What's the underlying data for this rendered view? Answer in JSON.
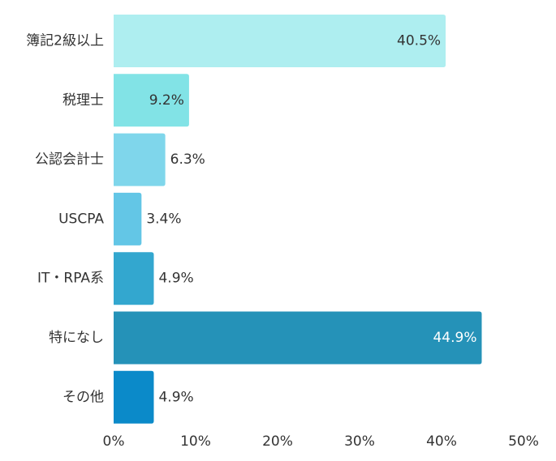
{
  "chart_data": {
    "type": "bar",
    "orientation": "horizontal",
    "categories": [
      "簿記2級以上",
      "税理士",
      "公認会計士",
      "USCPA",
      "IT・RPA系",
      "特になし",
      "その他"
    ],
    "values": [
      40.5,
      9.2,
      6.3,
      3.4,
      4.9,
      44.9,
      4.9
    ],
    "value_labels": [
      "40.5%",
      "9.2%",
      "6.3%",
      "3.4%",
      "4.9%",
      "44.9%",
      "4.9%"
    ],
    "bar_colors": [
      "#aeeef0",
      "#82e3e6",
      "#7fd6eb",
      "#63c6e6",
      "#33a7cf",
      "#2592b8",
      "#0b8ac9"
    ],
    "label_colors": [
      "#333333",
      "#333333",
      "#333333",
      "#333333",
      "#333333",
      "#ffffff",
      "#333333"
    ],
    "xlim": [
      0,
      50
    ],
    "xticks": [
      0,
      10,
      20,
      30,
      40,
      50
    ],
    "xtick_labels": [
      "0%",
      "10%",
      "20%",
      "30%",
      "40%",
      "50%"
    ],
    "grid": false,
    "title": "",
    "xlabel": "",
    "ylabel": ""
  }
}
